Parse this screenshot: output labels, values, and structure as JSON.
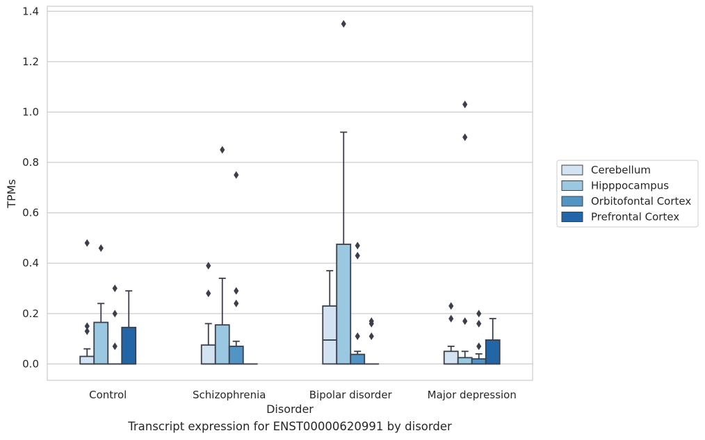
{
  "chart_data": {
    "type": "box",
    "caption": "Transcript expression for ENST00000620991 by disorder",
    "xlabel": "Disorder",
    "ylabel": "TPMs",
    "ylim": [
      -0.065,
      1.42
    ],
    "yticks": [
      "0.0",
      "0.2",
      "0.4",
      "0.6",
      "0.8",
      "1.0",
      "1.2",
      "1.4"
    ],
    "grid": "horizontal",
    "legend_placement": "right",
    "categories": [
      "Control",
      "Schizophrenia",
      "Bipolar disorder",
      "Major depression"
    ],
    "series": [
      {
        "name": "Cerebellum",
        "color": "#d3e3f2",
        "boxes": [
          {
            "q1": 0.0,
            "median": 0.0,
            "q3": 0.03,
            "whisker_low": 0.0,
            "whisker_high": 0.06,
            "outliers": [
              0.15,
              0.13,
              0.48
            ]
          },
          {
            "q1": 0.0,
            "median": 0.0,
            "q3": 0.075,
            "whisker_low": 0.0,
            "whisker_high": 0.16,
            "outliers": [
              0.28,
              0.39
            ]
          },
          {
            "q1": 0.0,
            "median": 0.095,
            "q3": 0.23,
            "whisker_low": 0.0,
            "whisker_high": 0.37,
            "outliers": []
          },
          {
            "q1": 0.0,
            "median": 0.0,
            "q3": 0.05,
            "whisker_low": 0.0,
            "whisker_high": 0.07,
            "outliers": [
              0.18,
              0.23
            ]
          }
        ]
      },
      {
        "name": "Hipppocampus",
        "color": "#9ac8e0",
        "boxes": [
          {
            "q1": 0.0,
            "median": 0.0,
            "q3": 0.165,
            "whisker_low": 0.0,
            "whisker_high": 0.24,
            "outliers": [
              0.46
            ]
          },
          {
            "q1": 0.0,
            "median": 0.0,
            "q3": 0.155,
            "whisker_low": 0.0,
            "whisker_high": 0.34,
            "outliers": [
              0.85
            ]
          },
          {
            "q1": 0.0,
            "median": 0.0,
            "q3": 0.475,
            "whisker_low": 0.0,
            "whisker_high": 0.92,
            "outliers": [
              1.35
            ]
          },
          {
            "q1": 0.0,
            "median": 0.0,
            "q3": 0.025,
            "whisker_low": 0.0,
            "whisker_high": 0.05,
            "outliers": [
              0.17,
              0.9,
              1.03
            ]
          }
        ]
      },
      {
        "name": "Orbitofontal Cortex",
        "color": "#5294c4",
        "boxes": [
          {
            "q1": 0.0,
            "median": 0.0,
            "q3": 0.0,
            "whisker_low": 0.0,
            "whisker_high": 0.0,
            "outliers": [
              0.07,
              0.2,
              0.3
            ]
          },
          {
            "q1": 0.0,
            "median": 0.0,
            "q3": 0.07,
            "whisker_low": 0.0,
            "whisker_high": 0.09,
            "outliers": [
              0.24,
              0.29,
              0.75
            ]
          },
          {
            "q1": 0.0,
            "median": 0.0,
            "q3": 0.038,
            "whisker_low": 0.0,
            "whisker_high": 0.05,
            "outliers": [
              0.11,
              0.43,
              0.47
            ]
          },
          {
            "q1": 0.0,
            "median": 0.0,
            "q3": 0.02,
            "whisker_low": 0.0,
            "whisker_high": 0.04,
            "outliers": [
              0.07,
              0.16,
              0.2
            ]
          }
        ]
      },
      {
        "name": "Prefrontal Cortex",
        "color": "#2366a8",
        "boxes": [
          {
            "q1": 0.0,
            "median": 0.0,
            "q3": 0.145,
            "whisker_low": 0.0,
            "whisker_high": 0.29,
            "outliers": []
          },
          {
            "q1": 0.0,
            "median": 0.0,
            "q3": 0.0,
            "whisker_low": 0.0,
            "whisker_high": 0.0,
            "outliers": []
          },
          {
            "q1": 0.0,
            "median": 0.0,
            "q3": 0.0,
            "whisker_low": 0.0,
            "whisker_high": 0.0,
            "outliers": [
              0.11,
              0.16,
              0.17
            ]
          },
          {
            "q1": 0.0,
            "median": 0.0,
            "q3": 0.095,
            "whisker_low": 0.0,
            "whisker_high": 0.18,
            "outliers": []
          }
        ]
      }
    ]
  }
}
